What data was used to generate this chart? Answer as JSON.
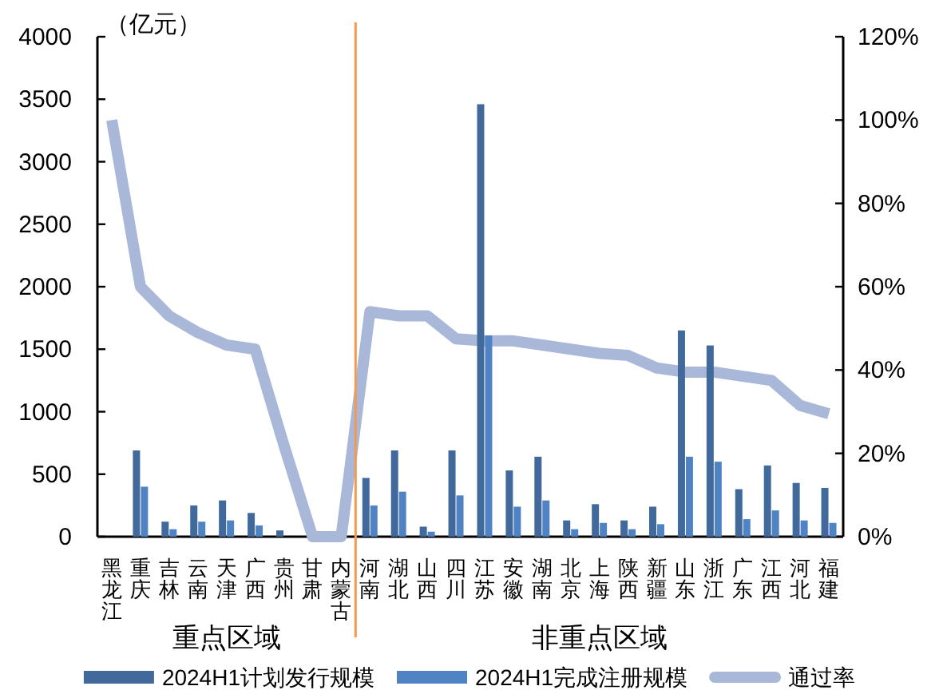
{
  "chart_data": {
    "type": "bar",
    "ylabel": "（亿元）",
    "categories": [
      "黑龙江",
      "重庆",
      "吉林",
      "云南",
      "天津",
      "广西",
      "贵州",
      "甘肃",
      "内蒙古",
      "河南",
      "湖北",
      "山西",
      "四川",
      "江苏",
      "安徽",
      "湖南",
      "北京",
      "上海",
      "陕西",
      "新疆",
      "山东",
      "浙江",
      "广东",
      "江西",
      "河北",
      "福建"
    ],
    "series": [
      {
        "name": "2024H1计划发行规模",
        "color": "#41699c",
        "values": [
          null,
          690,
          120,
          250,
          290,
          190,
          50,
          null,
          null,
          470,
          690,
          80,
          690,
          3460,
          530,
          640,
          130,
          260,
          130,
          240,
          1650,
          1530,
          380,
          570,
          430,
          390
        ]
      },
      {
        "name": "2024H1完成注册规模",
        "color": "#5083c3",
        "values": [
          null,
          400,
          60,
          120,
          130,
          90,
          null,
          null,
          null,
          250,
          360,
          40,
          330,
          1610,
          240,
          290,
          60,
          110,
          60,
          100,
          640,
          600,
          140,
          210,
          130,
          110
        ]
      },
      {
        "name": "通过率",
        "type": "line",
        "axis": "y2",
        "color": "#a9b8d9",
        "values": [
          100,
          60,
          53,
          49,
          46,
          45,
          22,
          0,
          0,
          54,
          53,
          53,
          47.5,
          47,
          47,
          46,
          45,
          44,
          43.5,
          40.5,
          39.5,
          39.5,
          38.5,
          37.5,
          31.5,
          29.5
        ]
      }
    ],
    "ylim": [
      0,
      4000
    ],
    "yticks": [
      0,
      500,
      1000,
      1500,
      2000,
      2500,
      3000,
      3500,
      4000
    ],
    "y2lim": [
      0,
      120
    ],
    "y2ticks": [
      {
        "value": 0,
        "label": "0%"
      },
      {
        "value": 20,
        "label": "20%"
      },
      {
        "value": 40,
        "label": "40%"
      },
      {
        "value": 60,
        "label": "60%"
      },
      {
        "value": 80,
        "label": "80%"
      },
      {
        "value": 100,
        "label": "100%"
      },
      {
        "value": 120,
        "label": "120%"
      }
    ],
    "ref_lines": [
      {
        "axis": "x",
        "value": "河南",
        "color": "#f39b4b"
      }
    ],
    "annotations": [
      "重点区域",
      "非重点区域"
    ],
    "legend": "bottom",
    "line_style": "solid"
  }
}
